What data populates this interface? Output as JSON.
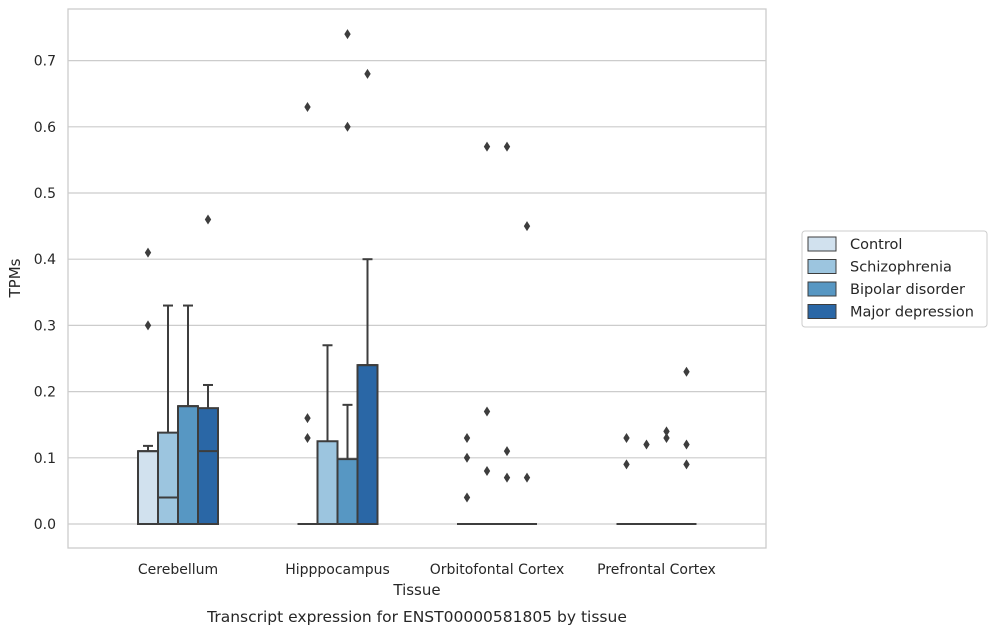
{
  "chart_data": {
    "type": "box",
    "title": "",
    "caption": "Transcript expression for ENST00000581805 by tissue",
    "xlabel": "Tissue",
    "ylabel": "TPMs",
    "ylim": [
      -0.035,
      0.78
    ],
    "yticks": [
      "0.0",
      "0.1",
      "0.2",
      "0.3",
      "0.4",
      "0.5",
      "0.6",
      "0.7"
    ],
    "grid": "horizontal",
    "legend_position": "right",
    "categories": [
      "Cerebellum",
      "Hipppocampus",
      "Orbitofontal Cortex",
      "Prefrontal Cortex"
    ],
    "series": [
      {
        "name": "Control",
        "color": "#d1e1ee",
        "boxes": [
          {
            "q1": 0.0,
            "median": 0.11,
            "q3": 0.11,
            "whisker_low": 0.0,
            "whisker_high": 0.118,
            "outliers": [
              0.3,
              0.41
            ]
          },
          {
            "q1": 0.0,
            "median": 0.0,
            "q3": 0.0,
            "whisker_low": 0.0,
            "whisker_high": 0.0,
            "outliers": [
              0.13,
              0.16,
              0.63
            ]
          },
          {
            "q1": 0.0,
            "median": 0.0,
            "q3": 0.0,
            "whisker_low": 0.0,
            "whisker_high": 0.0,
            "outliers": [
              0.04,
              0.1,
              0.13
            ]
          },
          {
            "q1": 0.0,
            "median": 0.0,
            "q3": 0.0,
            "whisker_low": 0.0,
            "whisker_high": 0.0,
            "outliers": [
              0.09,
              0.13
            ]
          }
        ]
      },
      {
        "name": "Schizophrenia",
        "color": "#9cc5df",
        "boxes": [
          {
            "q1": 0.0,
            "median": 0.04,
            "q3": 0.138,
            "whisker_low": 0.0,
            "whisker_high": 0.33,
            "outliers": []
          },
          {
            "q1": 0.0,
            "median": 0.0,
            "q3": 0.125,
            "whisker_low": 0.0,
            "whisker_high": 0.27,
            "outliers": []
          },
          {
            "q1": 0.0,
            "median": 0.0,
            "q3": 0.0,
            "whisker_low": 0.0,
            "whisker_high": 0.0,
            "outliers": [
              0.08,
              0.17,
              0.57
            ]
          },
          {
            "q1": 0.0,
            "median": 0.0,
            "q3": 0.0,
            "whisker_low": 0.0,
            "whisker_high": 0.0,
            "outliers": [
              0.12
            ]
          }
        ]
      },
      {
        "name": "Bipolar disorder",
        "color": "#5797c3",
        "boxes": [
          {
            "q1": 0.0,
            "median": 0.178,
            "q3": 0.178,
            "whisker_low": 0.0,
            "whisker_high": 0.33,
            "outliers": []
          },
          {
            "q1": 0.0,
            "median": 0.0,
            "q3": 0.098,
            "whisker_low": 0.0,
            "whisker_high": 0.18,
            "outliers": [
              0.6,
              0.74
            ]
          },
          {
            "q1": 0.0,
            "median": 0.0,
            "q3": 0.0,
            "whisker_low": 0.0,
            "whisker_high": 0.0,
            "outliers": [
              0.07,
              0.11,
              0.57
            ]
          },
          {
            "q1": 0.0,
            "median": 0.0,
            "q3": 0.0,
            "whisker_low": 0.0,
            "whisker_high": 0.0,
            "outliers": [
              0.13,
              0.14
            ]
          }
        ]
      },
      {
        "name": "Major depression",
        "color": "#2a67a6",
        "boxes": [
          {
            "q1": 0.0,
            "median": 0.11,
            "q3": 0.175,
            "whisker_low": 0.0,
            "whisker_high": 0.21,
            "outliers": [
              0.46
            ]
          },
          {
            "q1": 0.0,
            "median": 0.24,
            "q3": 0.24,
            "whisker_low": 0.0,
            "whisker_high": 0.4,
            "outliers": [
              0.68
            ]
          },
          {
            "q1": 0.0,
            "median": 0.0,
            "q3": 0.0,
            "whisker_low": 0.0,
            "whisker_high": 0.0,
            "outliers": [
              0.07,
              0.45
            ]
          },
          {
            "q1": 0.0,
            "median": 0.0,
            "q3": 0.0,
            "whisker_low": 0.0,
            "whisker_high": 0.0,
            "outliers": [
              0.09,
              0.12,
              0.23
            ]
          }
        ]
      }
    ]
  },
  "colors": {
    "line": "#3d3d3d",
    "grid": "#cccccc",
    "frame": "#cccccc"
  }
}
